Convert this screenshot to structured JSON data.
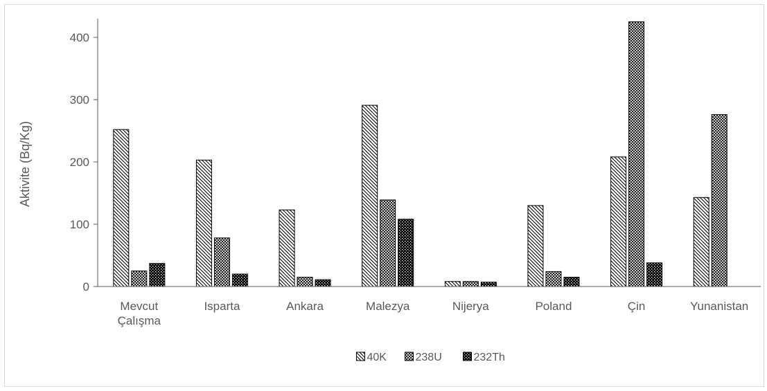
{
  "chart_data": {
    "type": "bar",
    "title": "",
    "xlabel": "",
    "ylabel": "Aktivite (Bq/Kg)",
    "ylim": [
      0,
      430
    ],
    "yticks": [
      0,
      100,
      200,
      300,
      400
    ],
    "grid": false,
    "legend_position": "bottom",
    "categories": [
      [
        "Mevcut",
        "Çalışma"
      ],
      [
        "Isparta"
      ],
      [
        "Ankara"
      ],
      [
        "Malezya"
      ],
      [
        "Nijerya"
      ],
      [
        "Poland"
      ],
      [
        "Çin"
      ],
      [
        "Yunanistan"
      ]
    ],
    "series": [
      {
        "name": "40K",
        "pattern": "diagonal-hatch",
        "values": [
          252,
          203,
          123,
          291,
          8,
          130,
          208,
          143
        ]
      },
      {
        "name": "238U",
        "pattern": "crosshatch",
        "values": [
          25,
          78,
          15,
          139,
          8,
          24,
          425,
          276
        ]
      },
      {
        "name": "232Th",
        "pattern": "dense-dots",
        "values": [
          37,
          20,
          11,
          108,
          7,
          15,
          38,
          null
        ]
      }
    ],
    "colors": {
      "bar_edge": "#000000",
      "axis": "#595959",
      "text": "#595959",
      "pattern_fg": "#000000",
      "background": "#ffffff"
    }
  }
}
